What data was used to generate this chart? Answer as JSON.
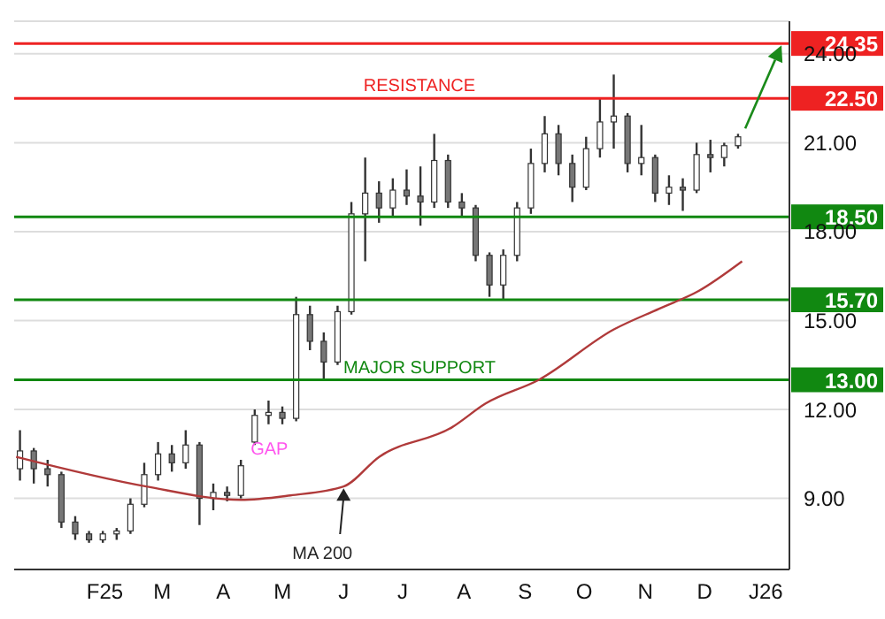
{
  "chart_data": {
    "type": "candlestick",
    "color": "#333333",
    "x": [
      "2025-01-03",
      "2025-01-10",
      "2025-01-17",
      "2025-01-24",
      "2025-01-31",
      "2025-02-07",
      "2025-02-14",
      "2025-02-21",
      "2025-02-28",
      "2025-03-07",
      "2025-03-14",
      "2025-03-21",
      "2025-03-28",
      "2025-04-04",
      "2025-04-11",
      "2025-04-18",
      "2025-04-25",
      "2025-05-02",
      "2025-05-09",
      "2025-05-16",
      "2025-05-23",
      "2025-05-30",
      "2025-06-06",
      "2025-06-13",
      "2025-06-20",
      "2025-06-27",
      "2025-07-04",
      "2025-07-11",
      "2025-07-18",
      "2025-07-25",
      "2025-08-01",
      "2025-08-08",
      "2025-08-15",
      "2025-08-22",
      "2025-08-29",
      "2025-09-05",
      "2025-09-12",
      "2025-09-19",
      "2025-09-26",
      "2025-10-03",
      "2025-10-10",
      "2025-10-17",
      "2025-10-24",
      "2025-10-31",
      "2025-11-07",
      "2025-11-14",
      "2025-11-21",
      "2025-11-28",
      "2025-12-05",
      "2025-12-12",
      "2025-12-19",
      "2025-12-26",
      "2026-01-02"
    ],
    "ohlc": [
      [
        10.0,
        11.3,
        9.6,
        10.6
      ],
      [
        10.6,
        10.7,
        9.5,
        10.0
      ],
      [
        10.0,
        10.3,
        9.4,
        9.8
      ],
      [
        9.8,
        9.9,
        8.0,
        8.2
      ],
      [
        8.2,
        8.4,
        7.6,
        7.8
      ],
      [
        7.8,
        7.9,
        7.5,
        7.6
      ],
      [
        7.6,
        7.9,
        7.5,
        7.8
      ],
      [
        7.8,
        8.0,
        7.6,
        7.9
      ],
      [
        7.9,
        9.0,
        7.8,
        8.8
      ],
      [
        8.8,
        10.2,
        8.7,
        9.8
      ],
      [
        9.8,
        10.9,
        9.6,
        10.5
      ],
      [
        10.5,
        10.8,
        9.9,
        10.2
      ],
      [
        10.2,
        11.3,
        10.0,
        10.8
      ],
      [
        10.8,
        10.9,
        8.1,
        9.0
      ],
      [
        9.0,
        9.5,
        8.6,
        9.2
      ],
      [
        9.2,
        9.4,
        8.9,
        9.1
      ],
      [
        9.1,
        10.3,
        9.0,
        10.1
      ],
      [
        10.9,
        12.0,
        10.8,
        11.8
      ],
      [
        11.8,
        12.3,
        11.5,
        11.9
      ],
      [
        11.9,
        12.1,
        11.5,
        11.7
      ],
      [
        11.7,
        15.8,
        11.6,
        15.2
      ],
      [
        15.2,
        15.5,
        14.0,
        14.3
      ],
      [
        14.3,
        14.6,
        13.0,
        13.6
      ],
      [
        13.6,
        15.5,
        13.5,
        15.3
      ],
      [
        15.3,
        19.0,
        15.2,
        18.6
      ],
      [
        18.6,
        20.5,
        17.0,
        19.3
      ],
      [
        19.3,
        19.7,
        18.3,
        18.8
      ],
      [
        18.8,
        19.8,
        18.5,
        19.4
      ],
      [
        19.4,
        20.1,
        18.9,
        19.2
      ],
      [
        19.2,
        20.2,
        18.2,
        19.0
      ],
      [
        19.0,
        21.3,
        18.8,
        20.4
      ],
      [
        20.4,
        20.6,
        18.8,
        19.0
      ],
      [
        19.0,
        19.3,
        18.5,
        18.8
      ],
      [
        18.8,
        18.9,
        17.0,
        17.2
      ],
      [
        17.2,
        17.3,
        15.8,
        16.2
      ],
      [
        16.2,
        17.4,
        15.7,
        17.2
      ],
      [
        17.2,
        19.0,
        17.0,
        18.8
      ],
      [
        18.8,
        20.8,
        18.6,
        20.3
      ],
      [
        20.3,
        21.9,
        20.0,
        21.3
      ],
      [
        21.3,
        21.6,
        19.9,
        20.3
      ],
      [
        20.3,
        20.6,
        19.0,
        19.5
      ],
      [
        19.5,
        21.2,
        19.4,
        20.8
      ],
      [
        20.8,
        22.5,
        20.5,
        21.7
      ],
      [
        21.7,
        23.3,
        20.8,
        21.9
      ],
      [
        21.9,
        22.0,
        20.0,
        20.3
      ],
      [
        20.3,
        21.6,
        19.9,
        20.5
      ],
      [
        20.5,
        20.6,
        19.0,
        19.3
      ],
      [
        19.3,
        19.9,
        18.9,
        19.5
      ],
      [
        19.5,
        19.8,
        18.7,
        19.4
      ],
      [
        19.4,
        21.0,
        19.3,
        20.6
      ],
      [
        20.6,
        21.1,
        20.0,
        20.5
      ],
      [
        20.5,
        21.0,
        20.2,
        20.9
      ],
      [
        20.9,
        21.3,
        20.8,
        21.2
      ]
    ],
    "series": [
      {
        "type": "line",
        "color": "#b03a3a",
        "x": [
          "2025-01-01",
          "2025-03-08",
          "2025-04-25",
          "2025-05-20",
          "2025-06-16",
          "2025-07-04",
          "2025-08-10",
          "2025-08-27",
          "2025-09-23",
          "2025-10-31",
          "2025-11-23",
          "2025-12-13",
          "2026-01-04"
        ],
        "values": [
          10.4,
          9.4,
          8.95,
          9.1,
          9.4,
          10.4,
          11.4,
          12.2,
          13.0,
          14.7,
          15.4,
          16.0,
          17.0
        ]
      }
    ],
    "xlim": [
      "2024-12-31",
      "2026-01-28"
    ],
    "xticks": [
      {
        "value": "2025-02-15",
        "label": "F25"
      },
      {
        "value": "2025-03-16",
        "label": "M"
      },
      {
        "value": "2025-04-16",
        "label": "A"
      },
      {
        "value": "2025-05-16",
        "label": "M"
      },
      {
        "value": "2025-06-16",
        "label": "J"
      },
      {
        "value": "2025-07-16",
        "label": "J"
      },
      {
        "value": "2025-08-16",
        "label": "A"
      },
      {
        "value": "2025-09-16",
        "label": "S"
      },
      {
        "value": "2025-10-16",
        "label": "O"
      },
      {
        "value": "2025-11-16",
        "label": "N"
      },
      {
        "value": "2025-12-16",
        "label": "D"
      },
      {
        "value": "2026-01-16",
        "label": "J26"
      }
    ],
    "ylim": [
      6.6,
      25.1
    ],
    "yticks": [
      {
        "value": 9,
        "label": "9.00"
      },
      {
        "value": 12,
        "label": "12.00"
      },
      {
        "value": 15,
        "label": "15.00"
      },
      {
        "value": 18,
        "label": "18.00"
      },
      {
        "value": 21,
        "label": "21.00"
      },
      {
        "value": 24,
        "label": "24.00"
      }
    ],
    "grid": "y",
    "ref_lines": [
      {
        "axis": "y",
        "value": 24.35,
        "label": "24.35",
        "color": "#ee2222"
      },
      {
        "axis": "y",
        "value": 22.5,
        "label": "22.50",
        "color": "#ee2222"
      },
      {
        "axis": "y",
        "value": 18.5,
        "label": "18.50",
        "color": "#118811"
      },
      {
        "axis": "y",
        "value": 15.7,
        "label": "15.70",
        "color": "#118811"
      },
      {
        "axis": "y",
        "value": 13.0,
        "label": "13.00",
        "color": "#118811"
      }
    ],
    "annotations": [
      "GAP",
      {
        "text": "RESISTANCE",
        "y": 22.5
      },
      {
        "text": "MAJOR SUPPORT",
        "y": 13.0
      },
      {
        "text": "MA 200",
        "x": "2025-06-16",
        "y": 9.4
      }
    ]
  }
}
